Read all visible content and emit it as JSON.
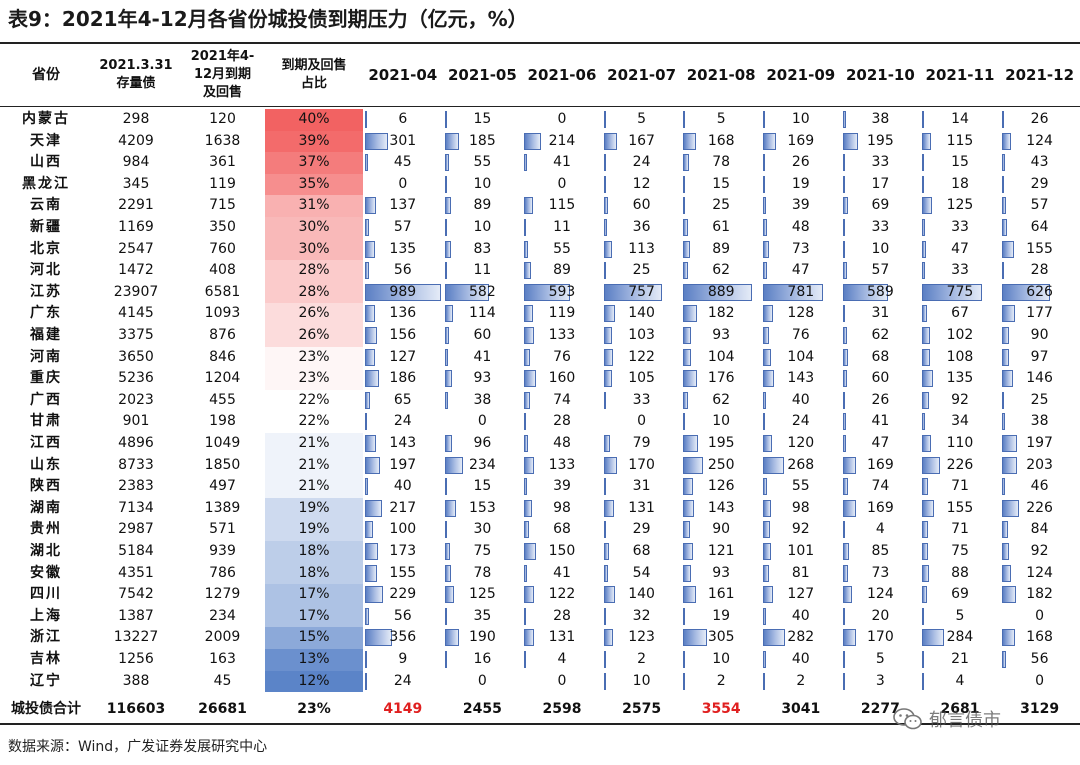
{
  "title": "表9：2021年4-12月各省份城投债到期压力（亿元，%）",
  "headers": {
    "province": "省份",
    "stock_line1": "2021.3.31",
    "stock_line2": "存量债",
    "due_line1": "2021年4-",
    "due_line2": "12月到期",
    "due_line3": "及回售",
    "ratio_line1": "到期及回售",
    "ratio_line2": "占比",
    "months": [
      "2021-04",
      "2021-05",
      "2021-06",
      "2021-07",
      "2021-08",
      "2021-09",
      "2021-10",
      "2021-11",
      "2021-12"
    ]
  },
  "rows": [
    {
      "province": "内蒙古",
      "stock": "298",
      "due": "120",
      "ratio": "40%",
      "monthly": [
        "6",
        "15",
        "0",
        "5",
        "5",
        "10",
        "38",
        "14",
        "26"
      ]
    },
    {
      "province": "天津",
      "stock": "4209",
      "due": "1638",
      "ratio": "39%",
      "monthly": [
        "301",
        "185",
        "214",
        "167",
        "168",
        "169",
        "195",
        "115",
        "124"
      ]
    },
    {
      "province": "山西",
      "stock": "984",
      "due": "361",
      "ratio": "37%",
      "monthly": [
        "45",
        "55",
        "41",
        "24",
        "78",
        "26",
        "33",
        "15",
        "43"
      ]
    },
    {
      "province": "黑龙江",
      "stock": "345",
      "due": "119",
      "ratio": "35%",
      "monthly": [
        "0",
        "10",
        "0",
        "12",
        "15",
        "19",
        "17",
        "18",
        "29"
      ]
    },
    {
      "province": "云南",
      "stock": "2291",
      "due": "715",
      "ratio": "31%",
      "monthly": [
        "137",
        "89",
        "115",
        "60",
        "25",
        "39",
        "69",
        "125",
        "57"
      ]
    },
    {
      "province": "新疆",
      "stock": "1169",
      "due": "350",
      "ratio": "30%",
      "monthly": [
        "57",
        "10",
        "11",
        "36",
        "61",
        "48",
        "33",
        "33",
        "64"
      ]
    },
    {
      "province": "北京",
      "stock": "2547",
      "due": "760",
      "ratio": "30%",
      "monthly": [
        "135",
        "83",
        "55",
        "113",
        "89",
        "73",
        "10",
        "47",
        "155"
      ]
    },
    {
      "province": "河北",
      "stock": "1472",
      "due": "408",
      "ratio": "28%",
      "monthly": [
        "56",
        "11",
        "89",
        "25",
        "62",
        "47",
        "57",
        "33",
        "28"
      ]
    },
    {
      "province": "江苏",
      "stock": "23907",
      "due": "6581",
      "ratio": "28%",
      "monthly": [
        "989",
        "582",
        "593",
        "757",
        "889",
        "781",
        "589",
        "775",
        "626"
      ]
    },
    {
      "province": "广东",
      "stock": "4145",
      "due": "1093",
      "ratio": "26%",
      "monthly": [
        "136",
        "114",
        "119",
        "140",
        "182",
        "128",
        "31",
        "67",
        "177"
      ]
    },
    {
      "province": "福建",
      "stock": "3375",
      "due": "876",
      "ratio": "26%",
      "monthly": [
        "156",
        "60",
        "133",
        "103",
        "93",
        "76",
        "62",
        "102",
        "90"
      ]
    },
    {
      "province": "河南",
      "stock": "3650",
      "due": "846",
      "ratio": "23%",
      "monthly": [
        "127",
        "41",
        "76",
        "122",
        "104",
        "104",
        "68",
        "108",
        "97"
      ]
    },
    {
      "province": "重庆",
      "stock": "5236",
      "due": "1204",
      "ratio": "23%",
      "monthly": [
        "186",
        "93",
        "160",
        "105",
        "176",
        "143",
        "60",
        "135",
        "146"
      ]
    },
    {
      "province": "广西",
      "stock": "2023",
      "due": "455",
      "ratio": "22%",
      "monthly": [
        "65",
        "38",
        "74",
        "33",
        "62",
        "40",
        "26",
        "92",
        "25"
      ]
    },
    {
      "province": "甘肃",
      "stock": "901",
      "due": "198",
      "ratio": "22%",
      "monthly": [
        "24",
        "0",
        "28",
        "0",
        "10",
        "24",
        "41",
        "34",
        "38"
      ]
    },
    {
      "province": "江西",
      "stock": "4896",
      "due": "1049",
      "ratio": "21%",
      "monthly": [
        "143",
        "96",
        "48",
        "79",
        "195",
        "120",
        "47",
        "110",
        "197"
      ]
    },
    {
      "province": "山东",
      "stock": "8733",
      "due": "1850",
      "ratio": "21%",
      "monthly": [
        "197",
        "234",
        "133",
        "170",
        "250",
        "268",
        "169",
        "226",
        "203"
      ]
    },
    {
      "province": "陕西",
      "stock": "2383",
      "due": "497",
      "ratio": "21%",
      "monthly": [
        "40",
        "15",
        "39",
        "31",
        "126",
        "55",
        "74",
        "71",
        "46"
      ]
    },
    {
      "province": "湖南",
      "stock": "7134",
      "due": "1389",
      "ratio": "19%",
      "monthly": [
        "217",
        "153",
        "98",
        "131",
        "143",
        "98",
        "169",
        "155",
        "226"
      ]
    },
    {
      "province": "贵州",
      "stock": "2987",
      "due": "571",
      "ratio": "19%",
      "monthly": [
        "100",
        "30",
        "68",
        "29",
        "90",
        "92",
        "4",
        "71",
        "84"
      ]
    },
    {
      "province": "湖北",
      "stock": "5184",
      "due": "939",
      "ratio": "18%",
      "monthly": [
        "173",
        "75",
        "150",
        "68",
        "121",
        "101",
        "85",
        "75",
        "92"
      ]
    },
    {
      "province": "安徽",
      "stock": "4351",
      "due": "786",
      "ratio": "18%",
      "monthly": [
        "155",
        "78",
        "41",
        "54",
        "93",
        "81",
        "73",
        "88",
        "124"
      ]
    },
    {
      "province": "四川",
      "stock": "7542",
      "due": "1279",
      "ratio": "17%",
      "monthly": [
        "229",
        "125",
        "122",
        "140",
        "161",
        "127",
        "124",
        "69",
        "182"
      ]
    },
    {
      "province": "上海",
      "stock": "1387",
      "due": "234",
      "ratio": "17%",
      "monthly": [
        "56",
        "35",
        "28",
        "32",
        "19",
        "40",
        "20",
        "5",
        "0"
      ]
    },
    {
      "province": "浙江",
      "stock": "13227",
      "due": "2009",
      "ratio": "15%",
      "monthly": [
        "356",
        "190",
        "131",
        "123",
        "305",
        "282",
        "170",
        "284",
        "168"
      ]
    },
    {
      "province": "吉林",
      "stock": "1256",
      "due": "163",
      "ratio": "13%",
      "monthly": [
        "9",
        "16",
        "4",
        "2",
        "10",
        "40",
        "5",
        "21",
        "56"
      ]
    },
    {
      "province": "辽宁",
      "stock": "388",
      "due": "45",
      "ratio": "12%",
      "monthly": [
        "24",
        "0",
        "0",
        "10",
        "2",
        "2",
        "3",
        "4",
        "0"
      ]
    }
  ],
  "ratio_values": [
    40,
    39,
    37,
    35,
    31,
    30,
    30,
    28,
    28,
    26,
    26,
    23,
    23,
    22,
    22,
    21,
    21,
    21,
    19,
    19,
    18,
    18,
    17,
    17,
    15,
    13,
    12
  ],
  "total": {
    "label": "城投债合计",
    "stock": "116603",
    "due": "26681",
    "ratio": "23%",
    "monthly": [
      "4149",
      "2455",
      "2598",
      "2575",
      "3554",
      "3041",
      "2277",
      "2681",
      "3129"
    ],
    "highlighted_months": [
      0,
      4
    ]
  },
  "source": "数据来源：Wind，广发证券发展研究中心",
  "watermark": "郁言债市",
  "colors": {
    "highlight_red": "#e02020",
    "ratio_high": "#f26262",
    "ratio_mid": "#ffffff",
    "ratio_low": "#5b84c8",
    "bar_fill": "#5b7fc4"
  }
}
